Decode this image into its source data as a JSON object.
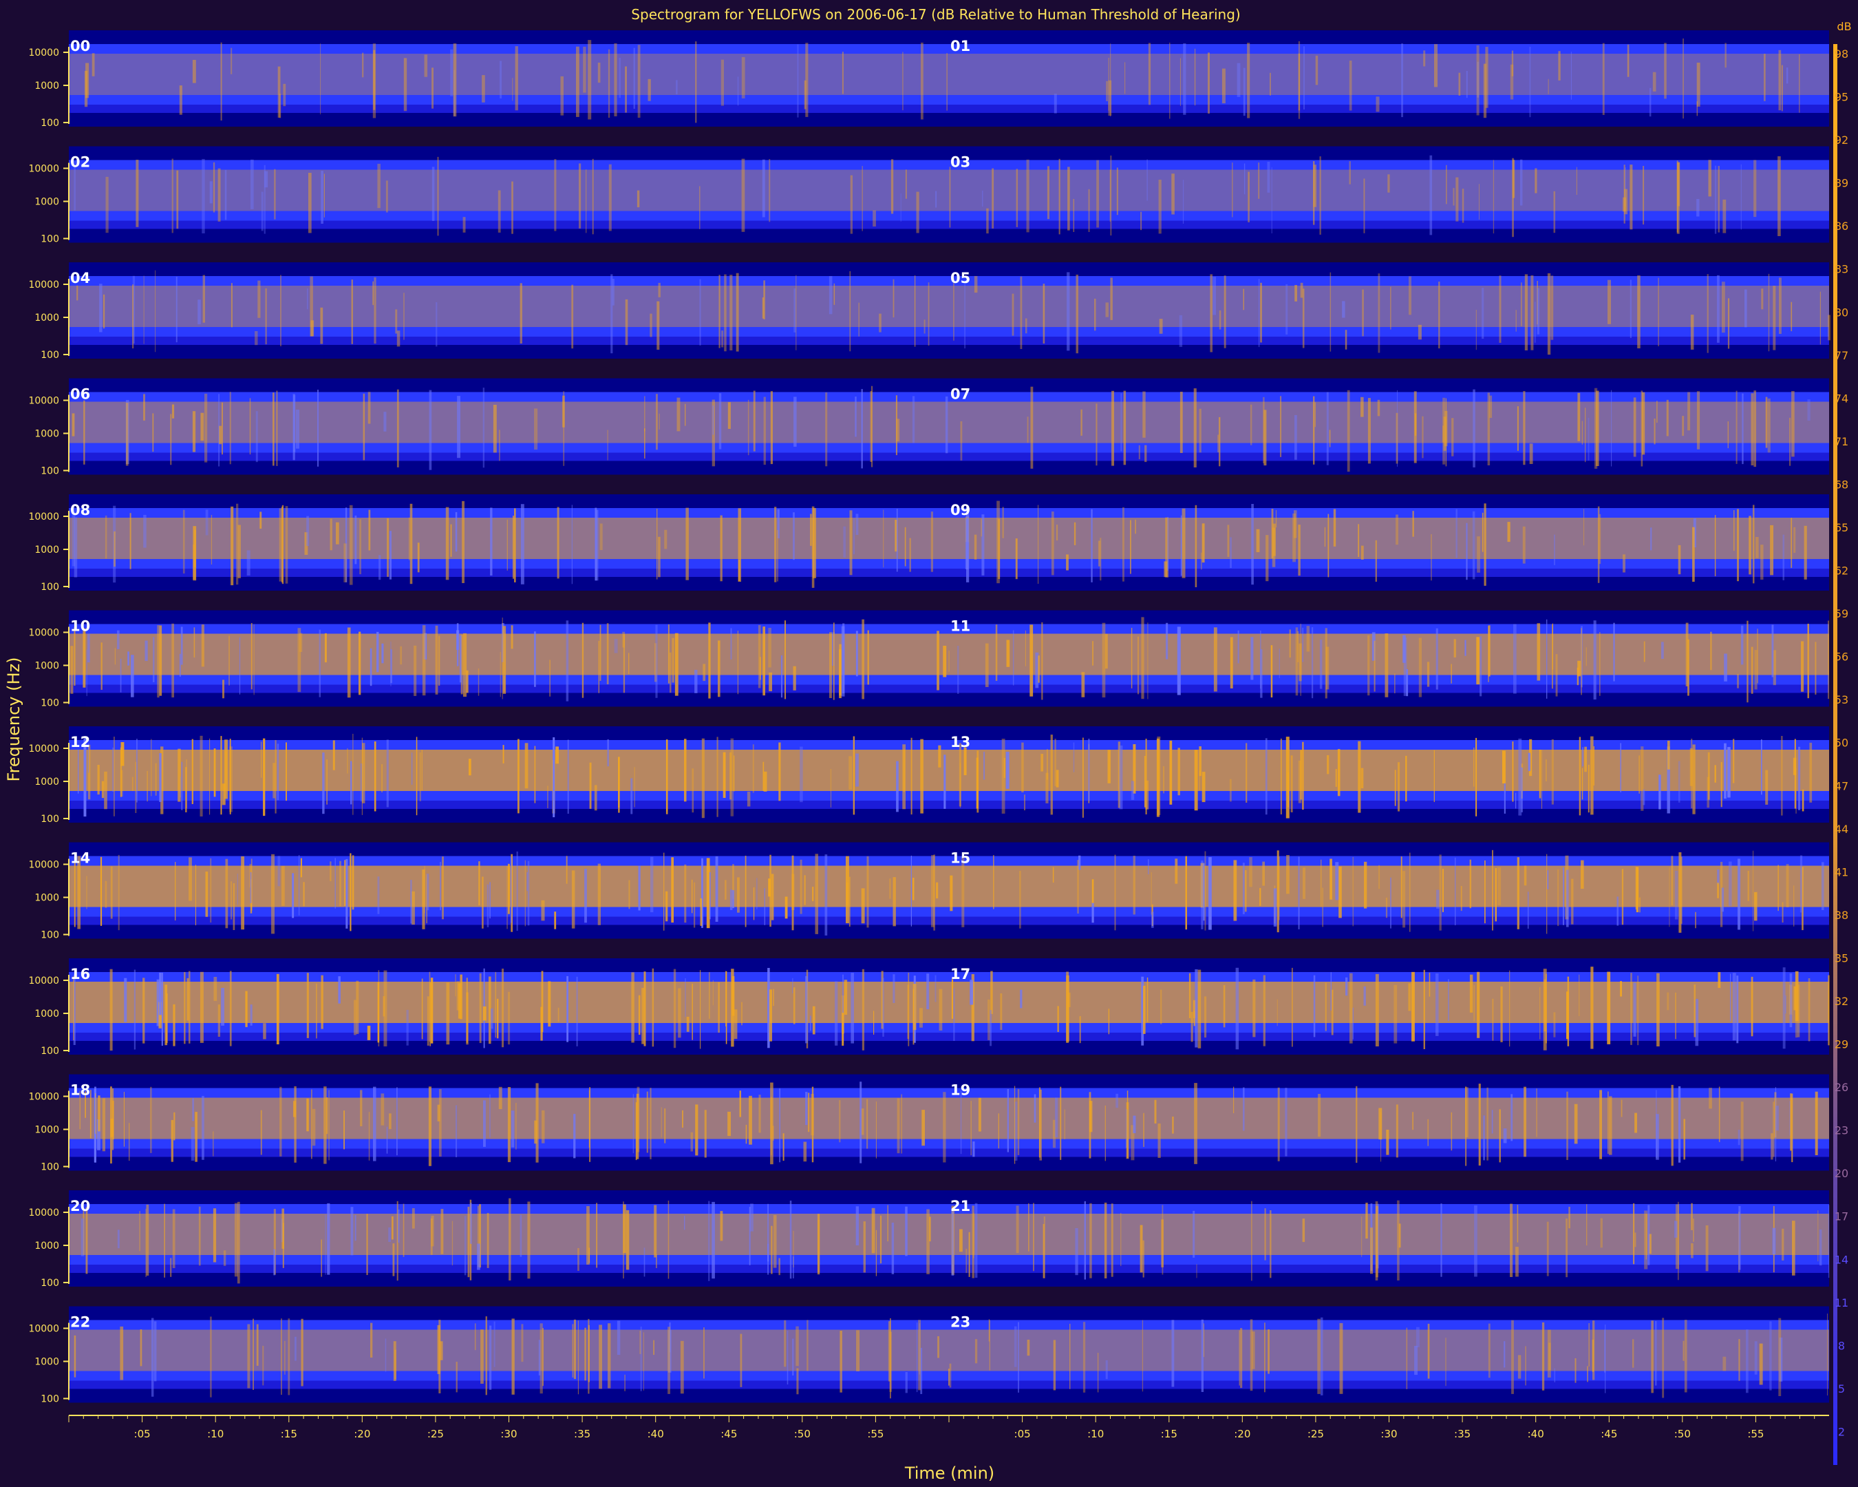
{
  "colors": {
    "background": "#1a0a33",
    "axis": "#ffe45c",
    "low": "#0000aa",
    "mid": "#2b3bff",
    "high": "#f4a81e",
    "hour_label": "#ffffff"
  },
  "chart_data": {
    "type": "heatmap",
    "title": "Spectrogram for YELLOFWS on 2006-06-17 (dB Relative to Human Threshold of Hearing)",
    "xlabel": "Time (min)",
    "ylabel": "Frequency (Hz)",
    "y_scale": "log",
    "y_ticks": [
      "10000",
      "1000",
      "100"
    ],
    "x_ticks": [
      ":05",
      ":10",
      ":15",
      ":20",
      ":25",
      ":30",
      ":35",
      ":40",
      ":45",
      ":50",
      ":55"
    ],
    "hours": [
      "00",
      "01",
      "02",
      "03",
      "04",
      "05",
      "06",
      "07",
      "08",
      "09",
      "10",
      "11",
      "12",
      "13",
      "14",
      "15",
      "16",
      "17",
      "18",
      "19",
      "20",
      "21",
      "22",
      "23"
    ],
    "hours_per_row": 2,
    "minutes_per_hour": 60,
    "relative_activity_by_hour": [
      0.25,
      0.25,
      0.28,
      0.28,
      0.35,
      0.35,
      0.45,
      0.45,
      0.6,
      0.6,
      0.8,
      0.8,
      0.92,
      0.92,
      0.9,
      0.9,
      0.88,
      0.88,
      0.7,
      0.7,
      0.6,
      0.6,
      0.45,
      0.45
    ],
    "colorbar": {
      "unit": "dB",
      "ticks": [
        "98",
        "95",
        "92",
        "89",
        "86",
        "83",
        "80",
        "77",
        "74",
        "71",
        "68",
        "65",
        "62",
        "59",
        "56",
        "53",
        "50",
        "47",
        "44",
        "41",
        "38",
        "35",
        "32",
        "29",
        "26",
        "23",
        "20",
        "17",
        "14",
        "11",
        "8",
        "5",
        "2"
      ],
      "range": [
        0,
        100
      ]
    }
  }
}
